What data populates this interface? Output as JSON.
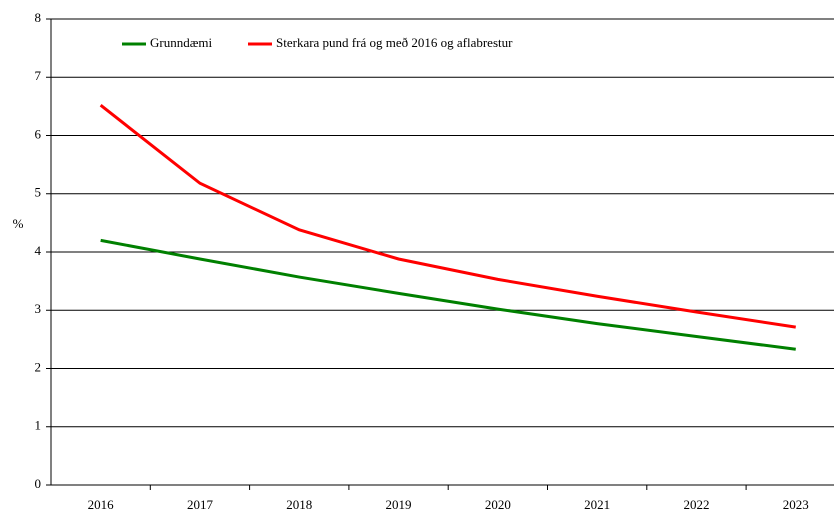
{
  "chart_data": {
    "type": "line",
    "y_label": "%",
    "categories": [
      "2016",
      "2017",
      "2018",
      "2019",
      "2020",
      "2021",
      "2022",
      "2023"
    ],
    "series": [
      {
        "name": "Grunndæmi",
        "color": "#008000",
        "values": [
          4.2,
          3.88,
          3.57,
          3.29,
          3.02,
          2.77,
          2.55,
          2.33
        ]
      },
      {
        "name": "Sterkara pund frá og með 2016 og aflabrestur",
        "color": "#ff0000",
        "values": [
          6.52,
          5.18,
          4.38,
          3.88,
          3.53,
          3.24,
          2.97,
          2.71
        ]
      }
    ],
    "ylim": [
      0,
      8
    ],
    "yticks": [
      0,
      1,
      2,
      3,
      4,
      5,
      6,
      7,
      8
    ],
    "grid": true
  }
}
